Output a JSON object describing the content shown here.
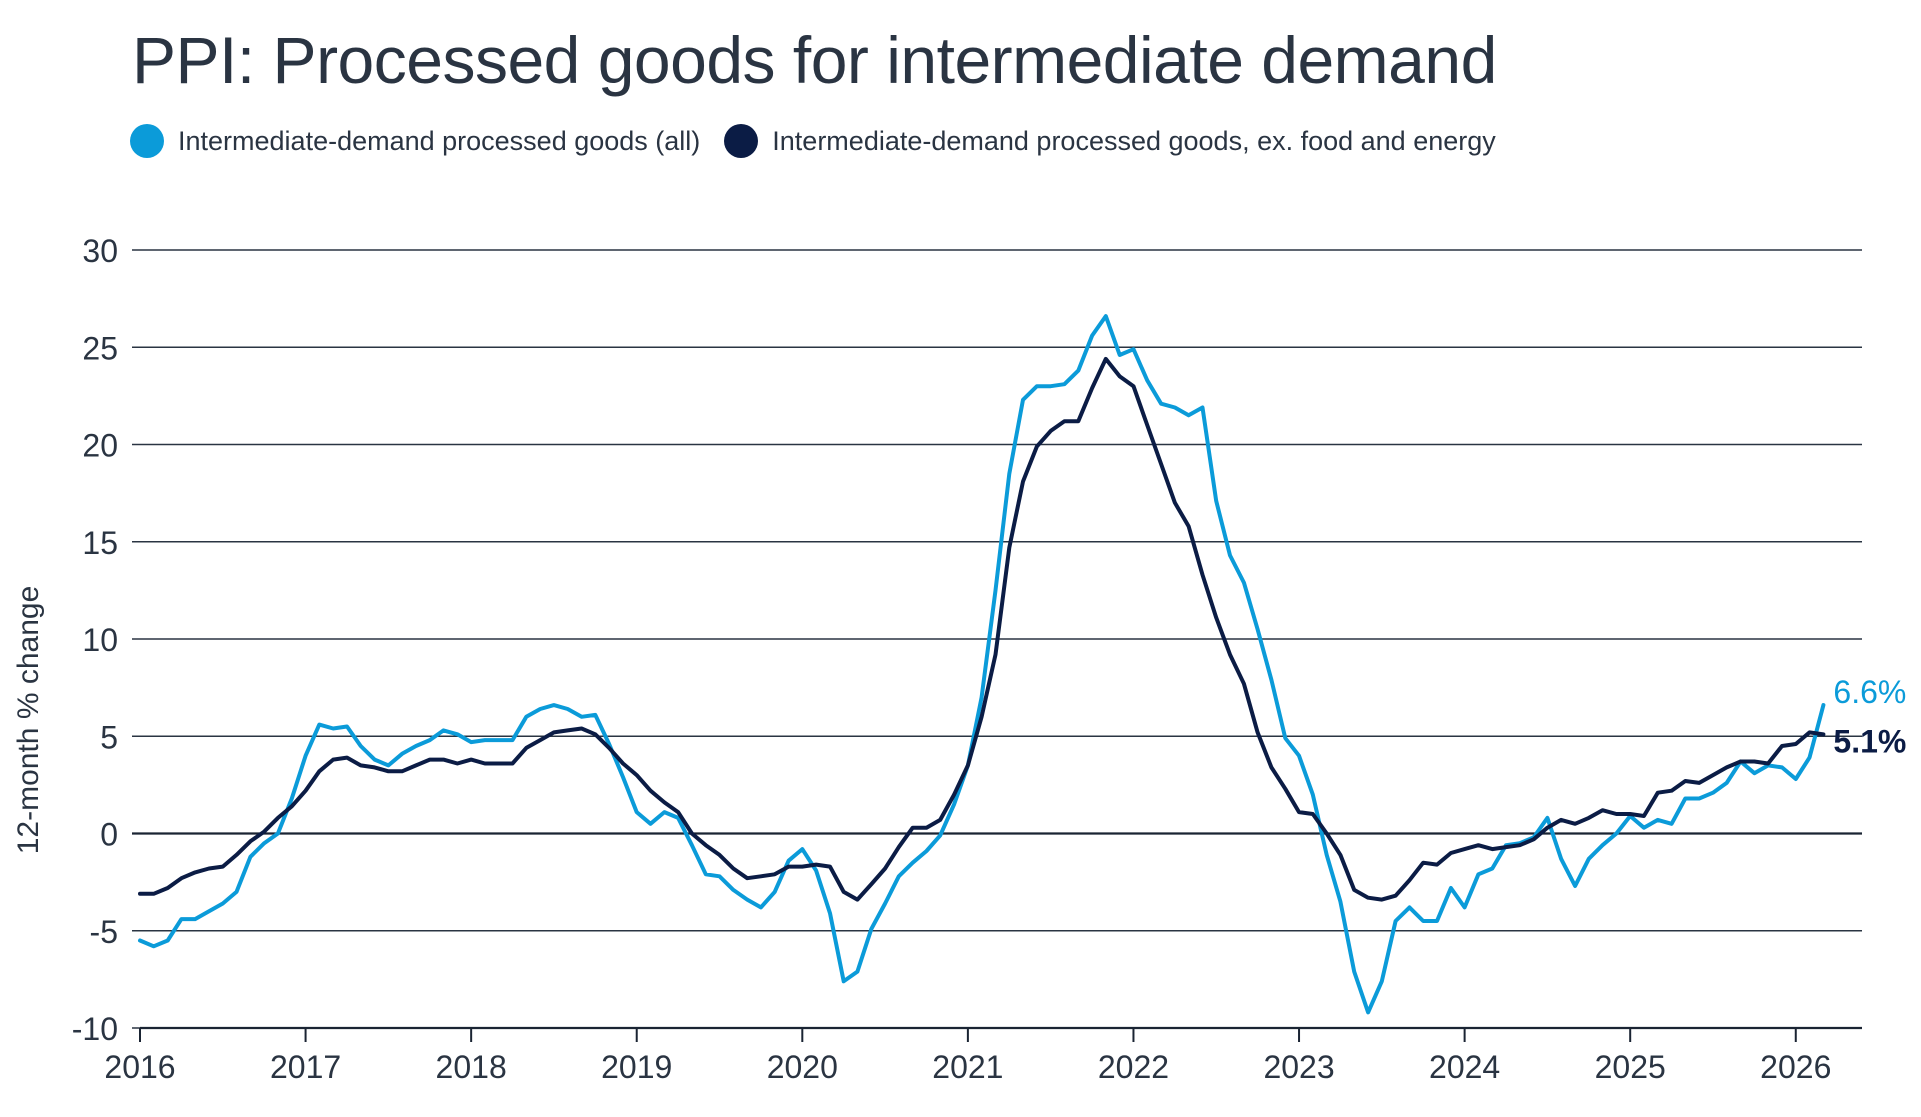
{
  "chart_data": {
    "type": "line",
    "title": "PPI: Processed goods for intermediate demand",
    "xlabel": "",
    "ylabel": "12-month % change",
    "xlim": [
      2016.0,
      2026.4
    ],
    "ylim": [
      -10,
      30
    ],
    "yticks": [
      -10,
      -5,
      0,
      5,
      10,
      15,
      20,
      25,
      30
    ],
    "xticks": [
      2016,
      2017,
      2018,
      2019,
      2020,
      2021,
      2022,
      2023,
      2024,
      2025,
      2026
    ],
    "grid": "horizontal",
    "legend_position": "top-left",
    "series": [
      {
        "name": "Intermediate-demand processed goods (all)",
        "color": "#0b9bd9",
        "end_label": "6.6%",
        "values": [
          [
            2016.0,
            -5.5
          ],
          [
            2016.083,
            -5.8
          ],
          [
            2016.167,
            -5.5
          ],
          [
            2016.25,
            -4.4
          ],
          [
            2016.333,
            -4.4
          ],
          [
            2016.417,
            -4.0
          ],
          [
            2016.5,
            -3.6
          ],
          [
            2016.583,
            -3.0
          ],
          [
            2016.667,
            -1.2
          ],
          [
            2016.75,
            -0.5
          ],
          [
            2016.833,
            0.0
          ],
          [
            2016.917,
            1.8
          ],
          [
            2017.0,
            4.0
          ],
          [
            2017.083,
            5.6
          ],
          [
            2017.167,
            5.4
          ],
          [
            2017.25,
            5.5
          ],
          [
            2017.333,
            4.5
          ],
          [
            2017.417,
            3.8
          ],
          [
            2017.5,
            3.5
          ],
          [
            2017.583,
            4.1
          ],
          [
            2017.667,
            4.5
          ],
          [
            2017.75,
            4.8
          ],
          [
            2017.833,
            5.3
          ],
          [
            2017.917,
            5.1
          ],
          [
            2018.0,
            4.7
          ],
          [
            2018.083,
            4.8
          ],
          [
            2018.167,
            4.8
          ],
          [
            2018.25,
            4.8
          ],
          [
            2018.333,
            6.0
          ],
          [
            2018.417,
            6.4
          ],
          [
            2018.5,
            6.6
          ],
          [
            2018.583,
            6.4
          ],
          [
            2018.667,
            6.0
          ],
          [
            2018.75,
            6.1
          ],
          [
            2018.833,
            4.6
          ],
          [
            2018.917,
            2.9
          ],
          [
            2019.0,
            1.1
          ],
          [
            2019.083,
            0.5
          ],
          [
            2019.167,
            1.1
          ],
          [
            2019.25,
            0.8
          ],
          [
            2019.333,
            -0.6
          ],
          [
            2019.417,
            -2.1
          ],
          [
            2019.5,
            -2.2
          ],
          [
            2019.583,
            -2.9
          ],
          [
            2019.667,
            -3.4
          ],
          [
            2019.75,
            -3.8
          ],
          [
            2019.833,
            -3.0
          ],
          [
            2019.917,
            -1.4
          ],
          [
            2020.0,
            -0.8
          ],
          [
            2020.083,
            -1.9
          ],
          [
            2020.167,
            -4.1
          ],
          [
            2020.25,
            -7.6
          ],
          [
            2020.333,
            -7.1
          ],
          [
            2020.417,
            -4.9
          ],
          [
            2020.5,
            -3.6
          ],
          [
            2020.583,
            -2.2
          ],
          [
            2020.667,
            -1.5
          ],
          [
            2020.75,
            -0.9
          ],
          [
            2020.833,
            -0.1
          ],
          [
            2020.917,
            1.5
          ],
          [
            2021.0,
            3.5
          ],
          [
            2021.083,
            7.0
          ],
          [
            2021.167,
            12.5
          ],
          [
            2021.25,
            18.5
          ],
          [
            2021.333,
            22.3
          ],
          [
            2021.417,
            23.0
          ],
          [
            2021.5,
            23.0
          ],
          [
            2021.583,
            23.1
          ],
          [
            2021.667,
            23.8
          ],
          [
            2021.75,
            25.6
          ],
          [
            2021.833,
            26.6
          ],
          [
            2021.917,
            24.6
          ],
          [
            2022.0,
            24.9
          ],
          [
            2022.083,
            23.3
          ],
          [
            2022.167,
            22.1
          ],
          [
            2022.25,
            21.9
          ],
          [
            2022.333,
            21.5
          ],
          [
            2022.417,
            21.9
          ],
          [
            2022.5,
            17.1
          ],
          [
            2022.583,
            14.3
          ],
          [
            2022.667,
            12.9
          ],
          [
            2022.75,
            10.5
          ],
          [
            2022.833,
            7.9
          ],
          [
            2022.917,
            4.9
          ],
          [
            2023.0,
            4.0
          ],
          [
            2023.083,
            2.0
          ],
          [
            2023.167,
            -1.1
          ],
          [
            2023.25,
            -3.5
          ],
          [
            2023.333,
            -7.1
          ],
          [
            2023.417,
            -9.2
          ],
          [
            2023.5,
            -7.6
          ],
          [
            2023.583,
            -4.5
          ],
          [
            2023.667,
            -3.8
          ],
          [
            2023.75,
            -4.5
          ],
          [
            2023.833,
            -4.5
          ],
          [
            2023.917,
            -2.8
          ],
          [
            2024.0,
            -3.8
          ],
          [
            2024.083,
            -2.1
          ],
          [
            2024.167,
            -1.8
          ],
          [
            2024.25,
            -0.6
          ],
          [
            2024.333,
            -0.5
          ],
          [
            2024.417,
            -0.2
          ],
          [
            2024.5,
            0.8
          ],
          [
            2024.583,
            -1.3
          ],
          [
            2024.667,
            -2.7
          ],
          [
            2024.75,
            -1.3
          ],
          [
            2024.833,
            -0.6
          ],
          [
            2024.917,
            0.0
          ],
          [
            2025.0,
            0.9
          ],
          [
            2025.083,
            0.3
          ],
          [
            2025.167,
            0.7
          ],
          [
            2025.25,
            0.5
          ],
          [
            2025.333,
            1.8
          ],
          [
            2025.417,
            1.8
          ],
          [
            2025.5,
            2.1
          ],
          [
            2025.583,
            2.6
          ],
          [
            2025.667,
            3.7
          ],
          [
            2025.75,
            3.1
          ],
          [
            2025.833,
            3.5
          ],
          [
            2025.917,
            3.4
          ],
          [
            2026.0,
            2.8
          ],
          [
            2026.083,
            3.9
          ],
          [
            2026.167,
            6.6
          ]
        ]
      },
      {
        "name": "Intermediate-demand processed goods, ex. food and energy",
        "color": "#0b1c45",
        "end_label": "5.1%",
        "values": [
          [
            2016.0,
            -3.1
          ],
          [
            2016.083,
            -3.1
          ],
          [
            2016.167,
            -2.8
          ],
          [
            2016.25,
            -2.3
          ],
          [
            2016.333,
            -2.0
          ],
          [
            2016.417,
            -1.8
          ],
          [
            2016.5,
            -1.7
          ],
          [
            2016.583,
            -1.1
          ],
          [
            2016.667,
            -0.4
          ],
          [
            2016.75,
            0.1
          ],
          [
            2016.833,
            0.8
          ],
          [
            2016.917,
            1.4
          ],
          [
            2017.0,
            2.2
          ],
          [
            2017.083,
            3.2
          ],
          [
            2017.167,
            3.8
          ],
          [
            2017.25,
            3.9
          ],
          [
            2017.333,
            3.5
          ],
          [
            2017.417,
            3.4
          ],
          [
            2017.5,
            3.2
          ],
          [
            2017.583,
            3.2
          ],
          [
            2017.667,
            3.5
          ],
          [
            2017.75,
            3.8
          ],
          [
            2017.833,
            3.8
          ],
          [
            2017.917,
            3.6
          ],
          [
            2018.0,
            3.8
          ],
          [
            2018.083,
            3.6
          ],
          [
            2018.167,
            3.6
          ],
          [
            2018.25,
            3.6
          ],
          [
            2018.333,
            4.4
          ],
          [
            2018.417,
            4.8
          ],
          [
            2018.5,
            5.2
          ],
          [
            2018.583,
            5.3
          ],
          [
            2018.667,
            5.4
          ],
          [
            2018.75,
            5.1
          ],
          [
            2018.833,
            4.4
          ],
          [
            2018.917,
            3.6
          ],
          [
            2019.0,
            3.0
          ],
          [
            2019.083,
            2.2
          ],
          [
            2019.167,
            1.6
          ],
          [
            2019.25,
            1.1
          ],
          [
            2019.333,
            0.0
          ],
          [
            2019.417,
            -0.6
          ],
          [
            2019.5,
            -1.1
          ],
          [
            2019.583,
            -1.8
          ],
          [
            2019.667,
            -2.3
          ],
          [
            2019.75,
            -2.2
          ],
          [
            2019.833,
            -2.1
          ],
          [
            2019.917,
            -1.7
          ],
          [
            2020.0,
            -1.7
          ],
          [
            2020.083,
            -1.6
          ],
          [
            2020.167,
            -1.7
          ],
          [
            2020.25,
            -3.0
          ],
          [
            2020.333,
            -3.4
          ],
          [
            2020.417,
            -2.6
          ],
          [
            2020.5,
            -1.8
          ],
          [
            2020.583,
            -0.7
          ],
          [
            2020.667,
            0.3
          ],
          [
            2020.75,
            0.3
          ],
          [
            2020.833,
            0.7
          ],
          [
            2020.917,
            2.0
          ],
          [
            2021.0,
            3.5
          ],
          [
            2021.083,
            6.0
          ],
          [
            2021.167,
            9.2
          ],
          [
            2021.25,
            14.7
          ],
          [
            2021.333,
            18.1
          ],
          [
            2021.417,
            19.9
          ],
          [
            2021.5,
            20.7
          ],
          [
            2021.583,
            21.2
          ],
          [
            2021.667,
            21.2
          ],
          [
            2021.75,
            22.9
          ],
          [
            2021.833,
            24.4
          ],
          [
            2021.917,
            23.5
          ],
          [
            2022.0,
            23.0
          ],
          [
            2022.083,
            21.0
          ],
          [
            2022.167,
            19.0
          ],
          [
            2022.25,
            17.0
          ],
          [
            2022.333,
            15.8
          ],
          [
            2022.417,
            13.3
          ],
          [
            2022.5,
            11.1
          ],
          [
            2022.583,
            9.2
          ],
          [
            2022.667,
            7.7
          ],
          [
            2022.75,
            5.2
          ],
          [
            2022.833,
            3.4
          ],
          [
            2022.917,
            2.3
          ],
          [
            2023.0,
            1.1
          ],
          [
            2023.083,
            1.0
          ],
          [
            2023.167,
            0.0
          ],
          [
            2023.25,
            -1.1
          ],
          [
            2023.333,
            -2.9
          ],
          [
            2023.417,
            -3.3
          ],
          [
            2023.5,
            -3.4
          ],
          [
            2023.583,
            -3.2
          ],
          [
            2023.667,
            -2.4
          ],
          [
            2023.75,
            -1.5
          ],
          [
            2023.833,
            -1.6
          ],
          [
            2023.917,
            -1.0
          ],
          [
            2024.0,
            -0.8
          ],
          [
            2024.083,
            -0.6
          ],
          [
            2024.167,
            -0.8
          ],
          [
            2024.25,
            -0.7
          ],
          [
            2024.333,
            -0.6
          ],
          [
            2024.417,
            -0.3
          ],
          [
            2024.5,
            0.3
          ],
          [
            2024.583,
            0.7
          ],
          [
            2024.667,
            0.5
          ],
          [
            2024.75,
            0.8
          ],
          [
            2024.833,
            1.2
          ],
          [
            2024.917,
            1.0
          ],
          [
            2025.0,
            1.0
          ],
          [
            2025.083,
            0.9
          ],
          [
            2025.167,
            2.1
          ],
          [
            2025.25,
            2.2
          ],
          [
            2025.333,
            2.7
          ],
          [
            2025.417,
            2.6
          ],
          [
            2025.5,
            3.0
          ],
          [
            2025.583,
            3.4
          ],
          [
            2025.667,
            3.7
          ],
          [
            2025.75,
            3.7
          ],
          [
            2025.833,
            3.6
          ],
          [
            2025.917,
            4.5
          ],
          [
            2026.0,
            4.6
          ],
          [
            2026.083,
            5.2
          ],
          [
            2026.167,
            5.1
          ]
        ]
      }
    ]
  }
}
